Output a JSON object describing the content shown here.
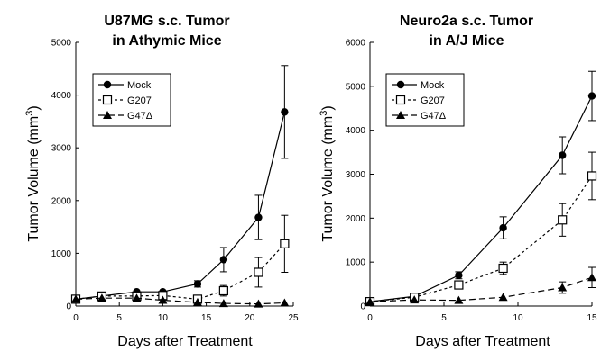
{
  "chart_data": [
    {
      "type": "line",
      "title_lines": [
        "U87MG s.c. Tumor",
        "in Athymic Mice"
      ],
      "xlabel": "Days after Treatment",
      "ylabel": "Tumor Volume (mm",
      "ylabel_sup": "3",
      "ylabel_close": ")",
      "xlim": [
        0,
        25
      ],
      "ylim": [
        0,
        5000
      ],
      "xticks": [
        0,
        5,
        10,
        15,
        20,
        25
      ],
      "yticks": [
        0,
        1000,
        2000,
        3000,
        4000,
        5000
      ],
      "legend_position": "top-left",
      "grid": false,
      "series": [
        {
          "name": "Mock",
          "marker": "circle",
          "dash": "solid",
          "x": [
            0,
            3,
            7,
            10,
            14,
            17,
            21,
            24
          ],
          "y": [
            130,
            190,
            270,
            270,
            420,
            880,
            1680,
            3680
          ],
          "err": [
            0,
            0,
            0,
            0,
            60,
            230,
            420,
            880
          ]
        },
        {
          "name": "G207",
          "marker": "square-open",
          "dash": "dotted",
          "x": [
            0,
            3,
            7,
            10,
            14,
            17,
            21,
            24
          ],
          "y": [
            130,
            190,
            190,
            200,
            130,
            290,
            640,
            1180
          ],
          "err": [
            0,
            0,
            0,
            0,
            0,
            100,
            280,
            540
          ]
        },
        {
          "name": "G47Δ",
          "marker": "triangle",
          "dash": "dashed",
          "x": [
            0,
            3,
            7,
            10,
            14,
            17,
            21,
            24
          ],
          "y": [
            130,
            150,
            150,
            110,
            70,
            50,
            40,
            60
          ],
          "err": [
            0,
            0,
            0,
            0,
            0,
            0,
            0,
            0
          ]
        }
      ]
    },
    {
      "type": "line",
      "title_lines": [
        "Neuro2a s.c. Tumor",
        "in A/J Mice"
      ],
      "xlabel": "Days after Treatment",
      "ylabel": "Tumor Volume (mm",
      "ylabel_sup": "3",
      "ylabel_close": ")",
      "xlim": [
        0,
        15
      ],
      "ylim": [
        0,
        6000
      ],
      "xticks": [
        0,
        5,
        10,
        15
      ],
      "yticks": [
        0,
        1000,
        2000,
        3000,
        4000,
        5000,
        6000
      ],
      "legend_position": "top-left",
      "grid": false,
      "series": [
        {
          "name": "Mock",
          "marker": "circle",
          "dash": "solid",
          "x": [
            0,
            3,
            6,
            9,
            13,
            15
          ],
          "y": [
            100,
            220,
            700,
            1780,
            3430,
            4780
          ],
          "err": [
            0,
            0,
            80,
            250,
            420,
            560
          ]
        },
        {
          "name": "G207",
          "marker": "square-open",
          "dash": "dotted",
          "x": [
            0,
            3,
            6,
            9,
            13,
            15
          ],
          "y": [
            100,
            200,
            480,
            860,
            1960,
            2960
          ],
          "err": [
            0,
            0,
            0,
            140,
            370,
            540
          ]
        },
        {
          "name": "G47Δ",
          "marker": "triangle",
          "dash": "dashed",
          "x": [
            0,
            3,
            6,
            9,
            13,
            15
          ],
          "y": [
            100,
            140,
            130,
            200,
            420,
            650
          ],
          "err": [
            0,
            0,
            0,
            0,
            130,
            230
          ]
        }
      ]
    }
  ]
}
